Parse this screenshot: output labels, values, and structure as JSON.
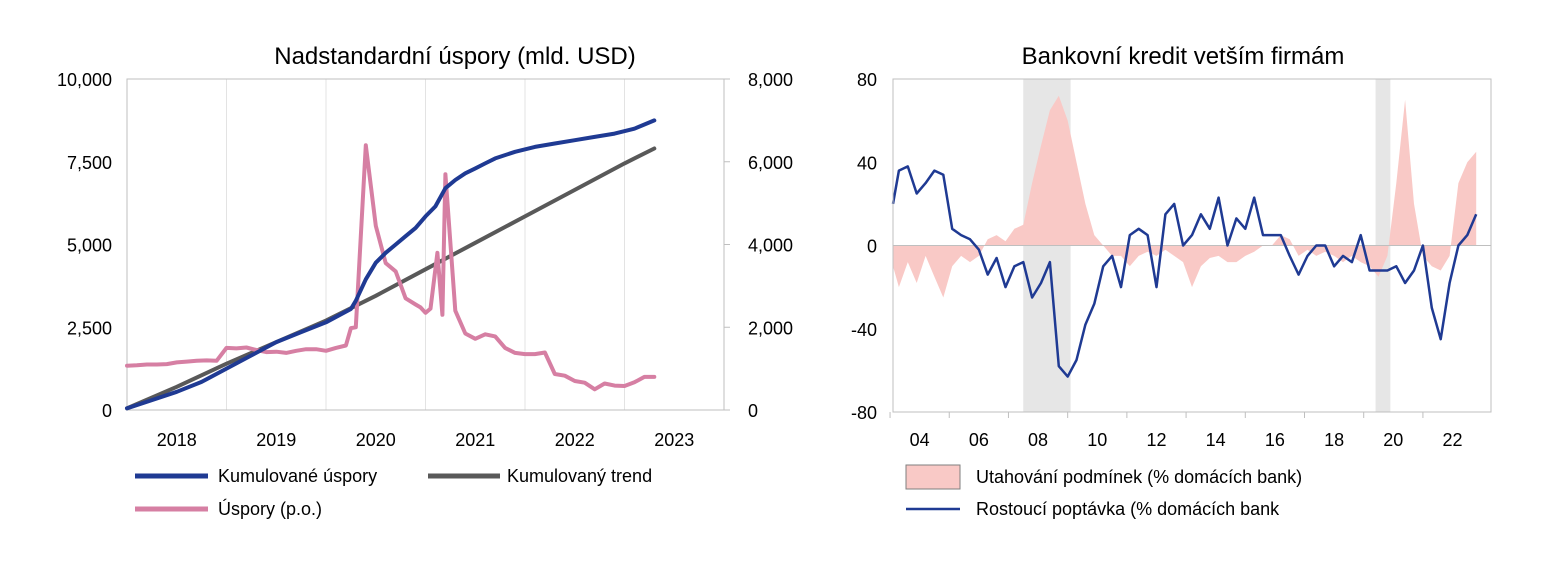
{
  "charts": {
    "left": {
      "title": "Nadstandardní úspory (mld. USD)",
      "ylim_left": [
        0,
        10000
      ],
      "ylim_right": [
        0,
        8000
      ],
      "xlim": [
        2017.5,
        2023.5
      ],
      "left_ticks": [
        "0",
        "2,500",
        "5,000",
        "7,500",
        "10,000"
      ],
      "right_ticks": [
        "0",
        "2,000",
        "4,000",
        "6,000",
        "8,000"
      ],
      "x_ticks": [
        "2018",
        "2019",
        "2020",
        "2021",
        "2022",
        "2023"
      ],
      "grid": "vertical",
      "legend": [
        {
          "label": "Kumulované úspory",
          "color": "#1f3a93"
        },
        {
          "label": "Kumulovaný trend",
          "color": "#595959"
        },
        {
          "label": "Úspory (p.o.)",
          "color": "#d67fa3"
        }
      ]
    },
    "right": {
      "title": "Bankovní kredit vetším firmám",
      "ylim": [
        -80,
        80
      ],
      "y_ticks": [
        "-80",
        "-40",
        "0",
        "40",
        "80"
      ],
      "x_ticks": [
        "04",
        "06",
        "08",
        "10",
        "12",
        "14",
        "16",
        "18",
        "20",
        "22"
      ],
      "legend": [
        {
          "label": "Utahování podmínek (% domácích bank)",
          "color": "#f9c9c6"
        },
        {
          "label": "Rostoucí poptávka (% domácích bank",
          "color": "#1f3a93"
        }
      ]
    }
  },
  "chart_data": [
    {
      "type": "line",
      "title": "Nadstandardní úspory (mld. USD)",
      "x_axis_labels": [
        "2018",
        "2019",
        "2020",
        "2021",
        "2022",
        "2023"
      ],
      "series": [
        {
          "name": "Kumulované úspory",
          "axis": "left",
          "color": "#1f3a93",
          "x": [
            2017.5,
            2017.75,
            2018,
            2018.25,
            2018.5,
            2018.75,
            2019,
            2019.25,
            2019.5,
            2019.75,
            2019.8,
            2019.9,
            2020,
            2020.1,
            2020.2,
            2020.3,
            2020.4,
            2020.5,
            2020.6,
            2020.7,
            2020.8,
            2020.9,
            2021,
            2021.1,
            2021.2,
            2021.4,
            2021.6,
            2021.8,
            2022,
            2022.2,
            2022.4,
            2022.6,
            2022.8
          ],
          "values": [
            50,
            300,
            550,
            850,
            1250,
            1650,
            2050,
            2350,
            2650,
            3050,
            3300,
            3950,
            4450,
            4750,
            5000,
            5250,
            5500,
            5850,
            6150,
            6700,
            6950,
            7150,
            7300,
            7450,
            7600,
            7800,
            7950,
            8050,
            8150,
            8250,
            8350,
            8500,
            8750
          ]
        },
        {
          "name": "Kumulovaný trend",
          "axis": "left",
          "color": "#595959",
          "x": [
            2017.5,
            2018,
            2018.5,
            2019,
            2019.5,
            2020,
            2020.5,
            2021,
            2021.5,
            2022,
            2022.5,
            2022.8
          ],
          "values": [
            50,
            700,
            1400,
            2050,
            2700,
            3450,
            4250,
            5050,
            5850,
            6650,
            7450,
            7900
          ]
        },
        {
          "name": "Úspory (p.o.)",
          "axis": "right",
          "color": "#d67fa3",
          "x": [
            2017.5,
            2017.6,
            2017.7,
            2017.8,
            2017.9,
            2018,
            2018.1,
            2018.2,
            2018.3,
            2018.4,
            2018.5,
            2018.6,
            2018.7,
            2018.8,
            2018.9,
            2019,
            2019.1,
            2019.2,
            2019.3,
            2019.4,
            2019.5,
            2019.6,
            2019.7,
            2019.75,
            2019.8,
            2019.9,
            2020,
            2020.1,
            2020.2,
            2020.3,
            2020.4,
            2020.45,
            2020.5,
            2020.55,
            2020.62,
            2020.67,
            2020.7,
            2020.8,
            2020.9,
            2021,
            2021.1,
            2021.2,
            2021.3,
            2021.4,
            2021.5,
            2021.6,
            2021.7,
            2021.8,
            2021.9,
            2022,
            2022.1,
            2022.2,
            2022.3,
            2022.4,
            2022.5,
            2022.6,
            2022.7,
            2022.8
          ],
          "values": [
            1070,
            1080,
            1100,
            1100,
            1110,
            1150,
            1170,
            1190,
            1200,
            1190,
            1500,
            1490,
            1510,
            1450,
            1400,
            1410,
            1380,
            1430,
            1470,
            1470,
            1430,
            1500,
            1560,
            1980,
            2000,
            6400,
            4450,
            3550,
            3350,
            2700,
            2550,
            2480,
            2350,
            2450,
            3800,
            2300,
            5700,
            2400,
            1850,
            1720,
            1830,
            1780,
            1500,
            1380,
            1350,
            1350,
            1390,
            870,
            830,
            700,
            660,
            500,
            640,
            590,
            580,
            670,
            800,
            800
          ]
        }
      ],
      "ylim_left": [
        0,
        10000
      ],
      "ylim_right": [
        0,
        8000
      ]
    },
    {
      "type": "area",
      "title": "Bankovní kredit vetším firmám",
      "x_axis_labels": [
        "04",
        "06",
        "08",
        "10",
        "12",
        "14",
        "16",
        "18",
        "20",
        "22"
      ],
      "shaded_periods": [
        [
          2007.5,
          2009.1
        ],
        [
          2019.4,
          2019.9
        ]
      ],
      "series": [
        {
          "name": "Utahování podmínek (% domácích bank)",
          "type": "area",
          "color": "#f9c9c6",
          "x": [
            2003.1,
            2003.3,
            2003.6,
            2003.9,
            2004.2,
            2004.5,
            2004.8,
            2005.1,
            2005.4,
            2005.7,
            2006,
            2006.3,
            2006.6,
            2006.9,
            2007.2,
            2007.5,
            2007.8,
            2008.1,
            2008.4,
            2008.7,
            2009,
            2009.3,
            2009.6,
            2009.9,
            2010.2,
            2010.5,
            2010.8,
            2011.1,
            2011.4,
            2011.7,
            2012,
            2012.3,
            2012.6,
            2012.9,
            2013.2,
            2013.5,
            2013.8,
            2014.1,
            2014.4,
            2014.7,
            2015,
            2015.3,
            2015.6,
            2015.9,
            2016.2,
            2016.5,
            2016.8,
            2017.1,
            2017.4,
            2017.7,
            2018,
            2018.3,
            2018.6,
            2018.9,
            2019.2,
            2019.5,
            2019.8,
            2020.1,
            2020.4,
            2020.7,
            2021,
            2021.3,
            2021.6,
            2021.9,
            2022.2,
            2022.5,
            2022.8
          ],
          "values": [
            -10,
            -20,
            -8,
            -18,
            -5,
            -15,
            -25,
            -10,
            -5,
            -8,
            -5,
            3,
            5,
            2,
            8,
            10,
            30,
            48,
            65,
            72,
            60,
            40,
            20,
            5,
            0,
            -5,
            -5,
            -10,
            -5,
            -3,
            -5,
            -2,
            -5,
            -8,
            -20,
            -10,
            -6,
            -5,
            -8,
            -8,
            -5,
            -3,
            0,
            0,
            5,
            3,
            -5,
            -2,
            -5,
            -3,
            -5,
            -8,
            -5,
            -8,
            -10,
            -15,
            -5,
            30,
            70,
            20,
            -5,
            -10,
            -12,
            -5,
            30,
            40,
            45
          ]
        },
        {
          "name": "Rostoucí poptávka (% domácích bank",
          "type": "line",
          "color": "#1f3a93",
          "x": [
            2003.1,
            2003.3,
            2003.6,
            2003.9,
            2004.2,
            2004.5,
            2004.8,
            2005.1,
            2005.4,
            2005.7,
            2006,
            2006.3,
            2006.6,
            2006.9,
            2007.2,
            2007.5,
            2007.8,
            2008.1,
            2008.4,
            2008.7,
            2009,
            2009.3,
            2009.6,
            2009.9,
            2010.2,
            2010.5,
            2010.8,
            2011.1,
            2011.4,
            2011.7,
            2012,
            2012.3,
            2012.6,
            2012.9,
            2013.2,
            2013.5,
            2013.8,
            2014.1,
            2014.4,
            2014.7,
            2015,
            2015.3,
            2015.6,
            2015.9,
            2016.2,
            2016.5,
            2016.8,
            2017.1,
            2017.4,
            2017.7,
            2018,
            2018.3,
            2018.6,
            2018.9,
            2019.2,
            2019.5,
            2019.8,
            2020.1,
            2020.4,
            2020.7,
            2021,
            2021.3,
            2021.6,
            2021.9,
            2022.2,
            2022.5,
            2022.8
          ],
          "values": [
            20,
            36,
            38,
            25,
            30,
            36,
            34,
            8,
            5,
            3,
            -2,
            -14,
            -6,
            -20,
            -10,
            -8,
            -25,
            -18,
            -8,
            -58,
            -63,
            -55,
            -38,
            -28,
            -10,
            -5,
            -20,
            5,
            8,
            5,
            -20,
            15,
            20,
            0,
            5,
            15,
            8,
            23,
            0,
            13,
            8,
            23,
            5,
            5,
            5,
            -5,
            -14,
            -5,
            0,
            0,
            -10,
            -5,
            -8,
            5,
            -12,
            -12,
            -12,
            -10,
            -18,
            -12,
            0,
            -30,
            -45,
            -18,
            0,
            5,
            15
          ]
        }
      ],
      "ylim": [
        -80,
        80
      ]
    }
  ]
}
